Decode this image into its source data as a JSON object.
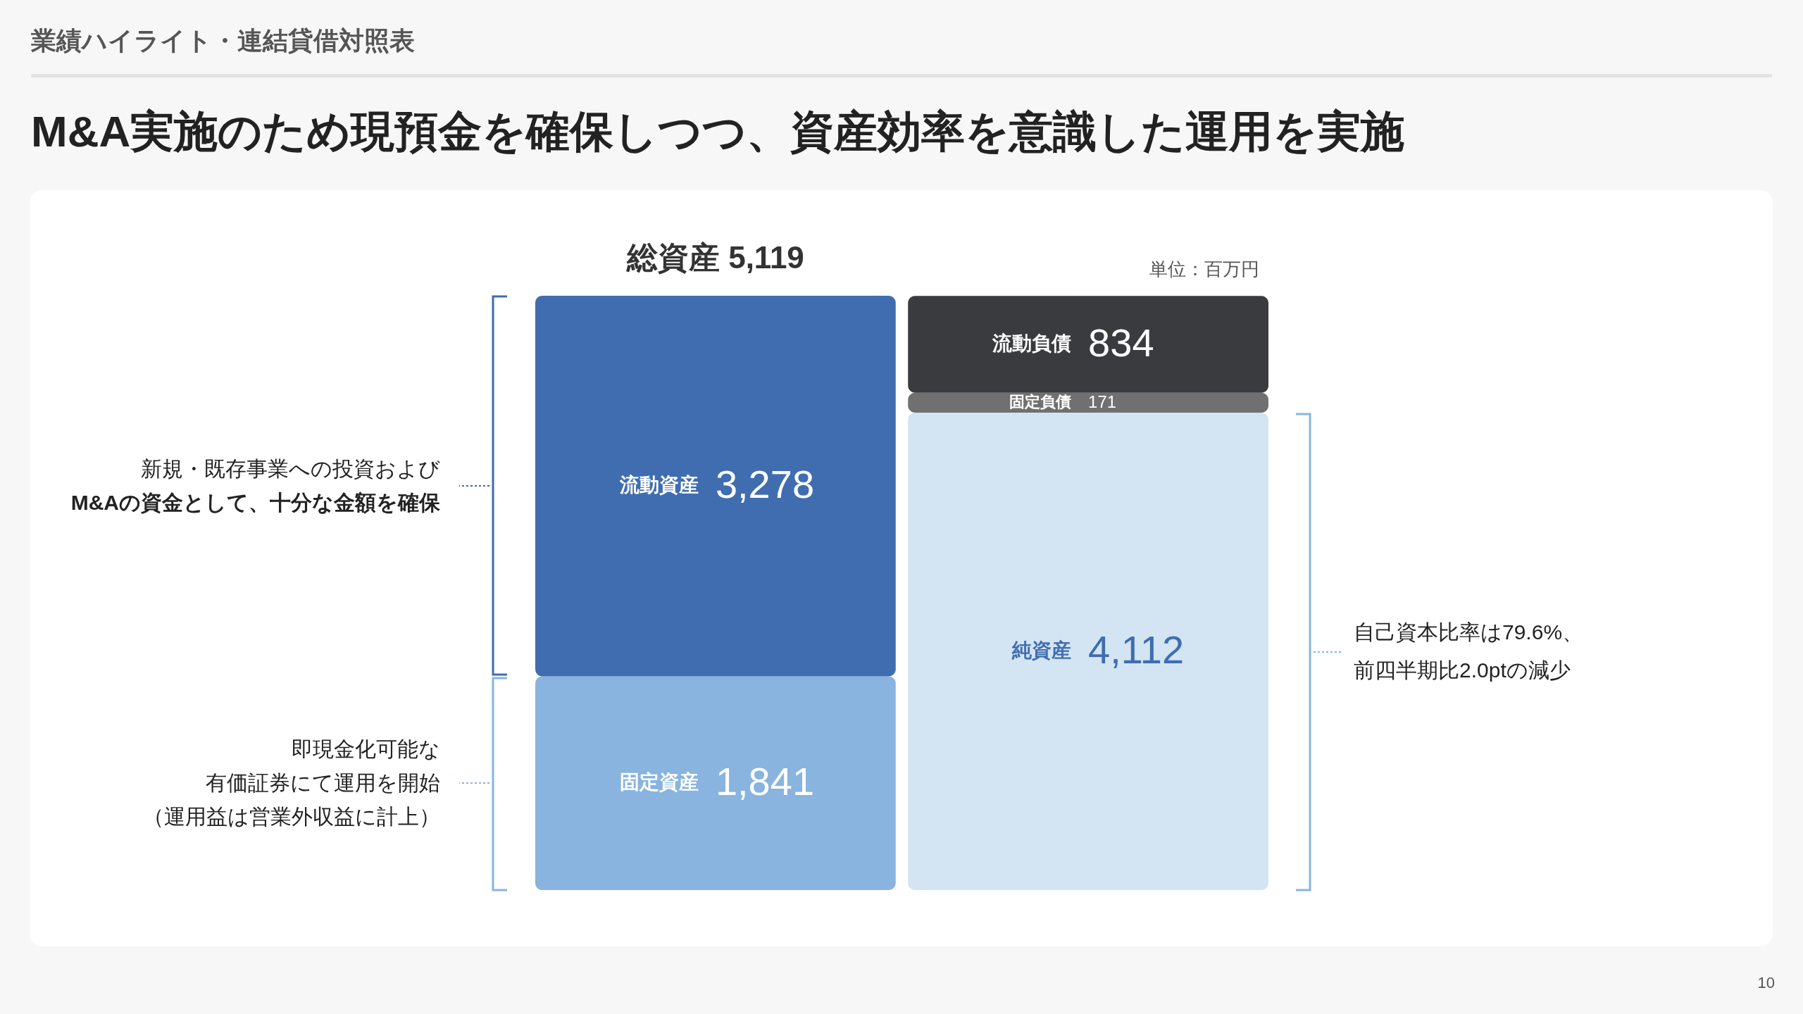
{
  "chart_data": {
    "type": "bar",
    "title": "M&A実施のため現預金を確保しつつ、資産効率を意識した運用を実施",
    "subtitle": "業績ハイライト・連結貸借対照表",
    "categories": [
      null,
      null
    ],
    "stacked": true,
    "series": [
      {
        "name": "固定資産",
        "color": "#88b4df",
        "values": [
          1841,
          null
        ],
        "value_labels": [
          "1,841",
          null
        ]
      },
      {
        "name": "流動資産",
        "color": "#3f6db0",
        "values": [
          3278,
          null
        ],
        "value_labels": [
          "3,278",
          null
        ]
      },
      {
        "name": "純資産",
        "color": "#d3e4f3",
        "values": [
          null,
          4112
        ],
        "value_labels": [
          null,
          "4,112"
        ]
      },
      {
        "name": "固定負債",
        "color": "#707070",
        "values": [
          null,
          171
        ],
        "value_labels": [
          null,
          "171"
        ]
      },
      {
        "name": "流動負債",
        "color": "#3a3b3e",
        "values": [
          null,
          834
        ],
        "value_labels": [
          null,
          "834"
        ]
      }
    ],
    "totals": [
      "総資産 5,119",
      null
    ],
    "tick_labels": false,
    "legend": false,
    "grid": false,
    "annotations": [
      "単位：百万円",
      "新規・既存事業への投資および\nM&Aの資金として、十分な金額を確保",
      "即現金化可能な",
      "有価証券にて運用を開始",
      "（運用益は営業外収益に計上）",
      "自己資本比率は79.6%、",
      "前四半期比2.0ptの減少",
      "10"
    ]
  }
}
